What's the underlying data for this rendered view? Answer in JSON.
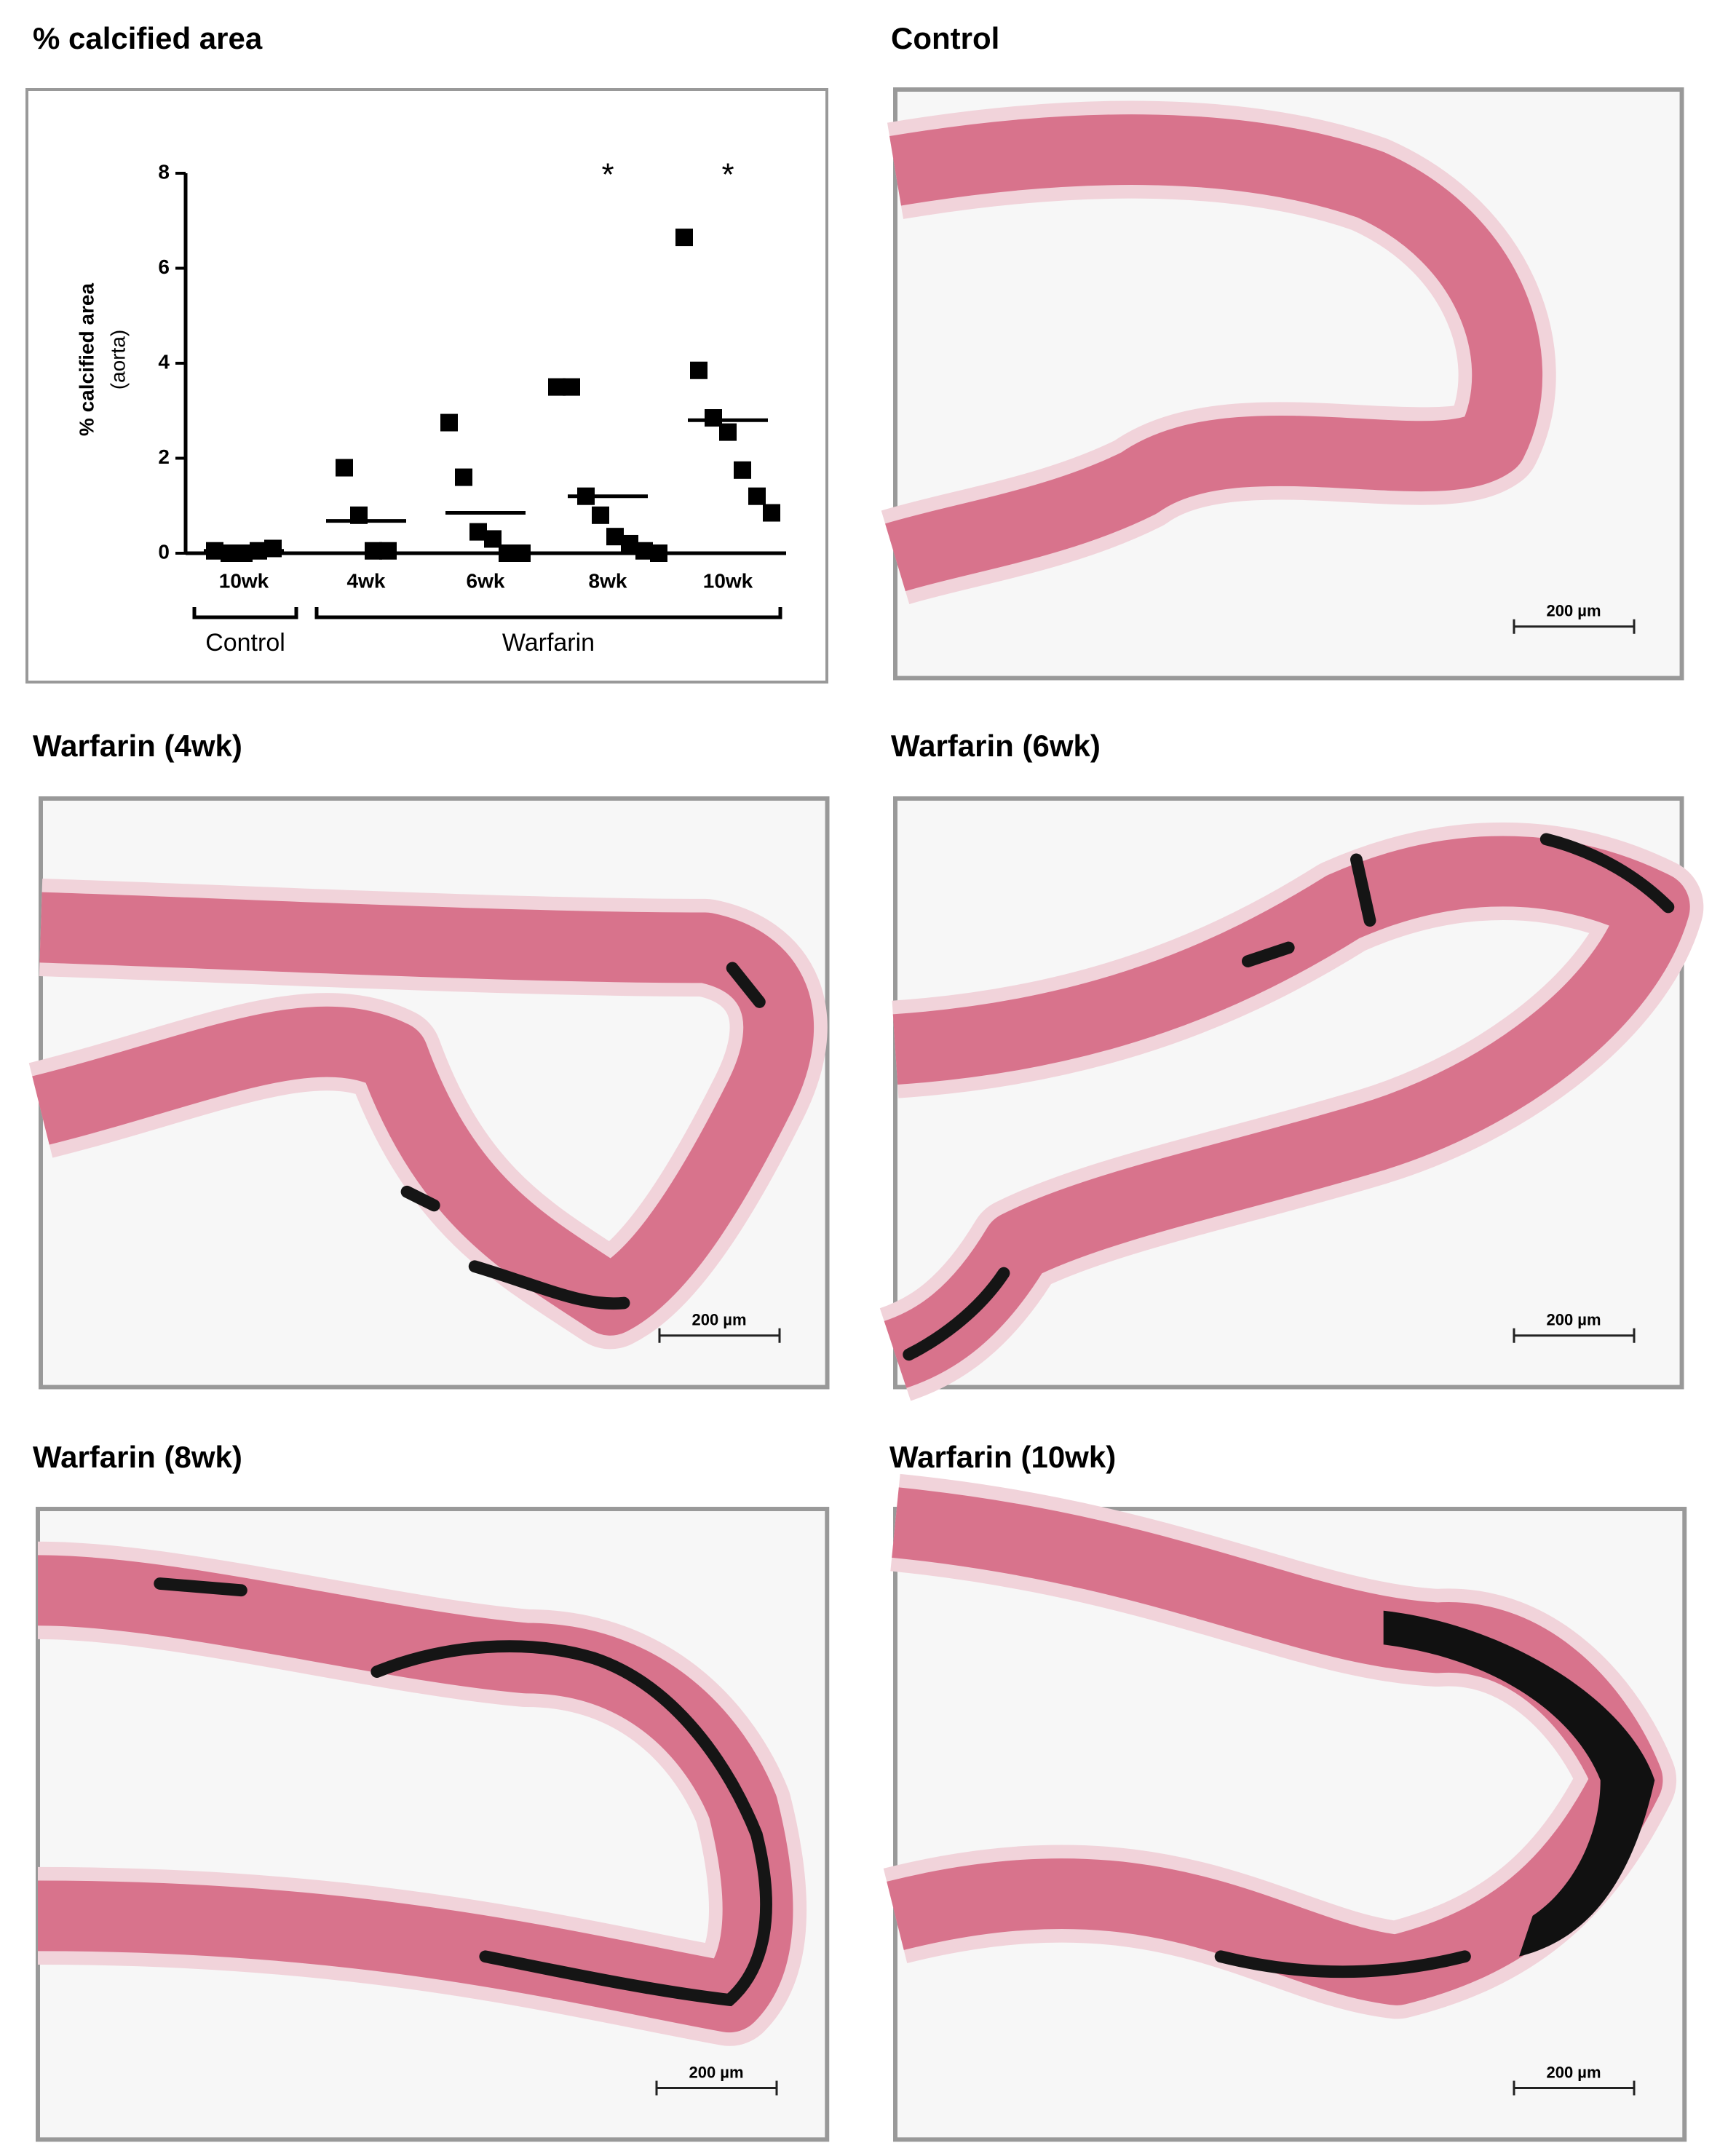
{
  "chart_data": {
    "type": "dotplot",
    "title": "% calcified area",
    "ylabel": "% calcified area",
    "ylabel_sub": "(aorta)",
    "categories": [
      "10wk",
      "4wk",
      "6wk",
      "8wk",
      "10wk"
    ],
    "groups": [
      "Control",
      "Warfarin",
      "Warfarin",
      "Warfarin",
      "Warfarin"
    ],
    "values": [
      [
        0.05,
        0,
        0,
        0.05,
        0.1
      ],
      [
        1.8,
        0.8,
        0.05,
        0.05
      ],
      [
        2.75,
        1.6,
        0.45,
        0.3,
        0,
        0
      ],
      [
        3.5,
        3.5,
        1.2,
        0.8,
        0.35,
        0.2,
        0.05,
        0
      ],
      [
        6.65,
        3.85,
        2.85,
        2.55,
        1.75,
        1.2,
        0.85
      ]
    ],
    "means": [
      0.05,
      0.68,
      0.85,
      1.2,
      2.8
    ],
    "annotations": [
      null,
      null,
      null,
      "*",
      "*"
    ],
    "color": "#000000",
    "ylim": [
      0,
      8
    ],
    "yticks": [
      0,
      2,
      4,
      6,
      8
    ]
  },
  "panels": [
    {
      "title": "Control",
      "scale_label": "200 µm"
    },
    {
      "title": "Warfarin (4wk)",
      "scale_label": "200 µm"
    },
    {
      "title": "Warfarin (6wk)",
      "scale_label": "200 µm"
    },
    {
      "title": "Warfarin (8wk)",
      "scale_label": "200 µm"
    },
    {
      "title": "Warfarin (10wk)",
      "scale_label": "200 µm"
    }
  ]
}
